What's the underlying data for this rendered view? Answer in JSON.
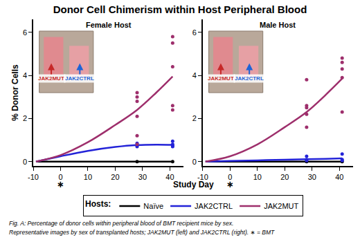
{
  "title": "Donor Cell Chimerism within Host Peripheral Blood",
  "xlabel": "Study Day",
  "ylabel": "% Donor Cells",
  "legend_title": "Hosts:",
  "bmt_day": 0,
  "bmt_mark": "∗",
  "inset_labels": [
    {
      "text": "JAK2MUT",
      "color": "#c62828"
    },
    {
      "text": "JAK2CTRL",
      "color": "#1e63d6"
    }
  ],
  "caption": [
    "Fig. A: Percentage of donor cells within peripheral blood of BMT recipient mice by sex.",
    "Representative images by sex of transplanted hosts; JAK2MUT (left) and JAK2CTRL (right). ∗ = BMT"
  ],
  "chart_data": [
    {
      "type": "scatter",
      "title": "Female Host",
      "xlim": [
        -10,
        45
      ],
      "xticks": [
        -10,
        0,
        10,
        20,
        30,
        40
      ],
      "ylim": [
        -0.2,
        6.6
      ],
      "yticks": [
        0,
        2,
        4,
        6
      ],
      "series": [
        {
          "name": "Naïve",
          "color": "#000000",
          "x": [
            -9,
            0,
            10,
            20,
            28,
            35,
            41
          ],
          "values": [
            0,
            0,
            0,
            0,
            0,
            0,
            0
          ],
          "points": {
            "x": [
              28,
              41
            ],
            "values": [
              0,
              0
            ]
          }
        },
        {
          "name": "JAK2CTRL",
          "color": "#2323d8",
          "x": [
            -9,
            0,
            10,
            20,
            28,
            35,
            41
          ],
          "values": [
            0,
            0.25,
            0.5,
            0.68,
            0.77,
            0.79,
            0.78
          ],
          "points": {
            "x": [
              28,
              28,
              28,
              41,
              41,
              41,
              41
            ],
            "values": [
              0.85,
              0.75,
              0.7,
              0.95,
              0.8,
              0.75,
              0.7
            ]
          }
        },
        {
          "name": "JAK2MUT",
          "color": "#9e2f6c",
          "x": [
            -9,
            0,
            10,
            20,
            28,
            35,
            41
          ],
          "values": [
            0,
            0.3,
            0.9,
            1.7,
            2.4,
            3.2,
            3.95
          ],
          "points": {
            "x": [
              28,
              28,
              28,
              28,
              28,
              28,
              41,
              41,
              41,
              41,
              41
            ],
            "values": [
              3.2,
              3.0,
              2.8,
              2.1,
              1.2,
              0.8,
              5.8,
              5.5,
              4.4,
              2.6,
              2.4
            ]
          }
        }
      ]
    },
    {
      "type": "scatter",
      "title": "Male Host",
      "xlim": [
        -10,
        45
      ],
      "xticks": [
        -10,
        0,
        10,
        20,
        30,
        40
      ],
      "ylim": [
        -0.2,
        6.6
      ],
      "yticks": [
        0,
        2,
        4,
        6
      ],
      "series": [
        {
          "name": "Naïve",
          "color": "#000000",
          "x": [
            -9,
            0,
            10,
            20,
            28,
            35,
            41
          ],
          "values": [
            0,
            0,
            0,
            0,
            0,
            0,
            0
          ],
          "points": {
            "x": [
              28,
              41
            ],
            "values": [
              0,
              0
            ]
          }
        },
        {
          "name": "JAK2CTRL",
          "color": "#2323d8",
          "x": [
            -9,
            0,
            10,
            20,
            28,
            35,
            41
          ],
          "values": [
            0,
            0.03,
            0.06,
            0.09,
            0.11,
            0.13,
            0.15
          ],
          "points": {
            "x": [
              28,
              28,
              28,
              41,
              41,
              41
            ],
            "values": [
              0.25,
              0.1,
              0.05,
              0.35,
              0.1,
              0.05
            ]
          }
        },
        {
          "name": "JAK2MUT",
          "color": "#9e2f6c",
          "x": [
            -9,
            0,
            10,
            20,
            28,
            35,
            41
          ],
          "values": [
            0,
            0.25,
            0.8,
            1.6,
            2.3,
            3.1,
            3.85
          ],
          "points": {
            "x": [
              28,
              28,
              28,
              28,
              28,
              41,
              41,
              41,
              41,
              41
            ],
            "values": [
              3.8,
              2.6,
              2.5,
              2.2,
              1.6,
              4.8,
              4.6,
              4.3,
              3.9,
              2.3
            ]
          }
        }
      ]
    }
  ]
}
